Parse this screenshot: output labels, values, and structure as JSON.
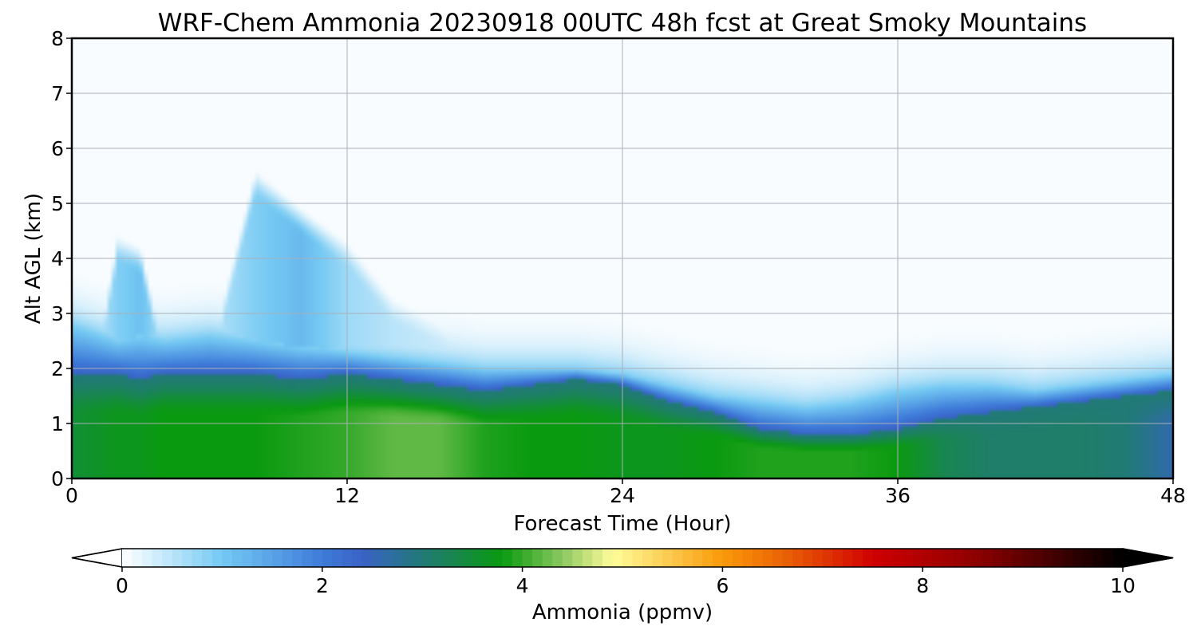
{
  "chart_data": {
    "type": "heatmap",
    "title": "WRF-Chem Ammonia  20230918 00UTC 48h fcst at Great Smoky Mountains",
    "xlabel": "Forecast Time (Hour)",
    "ylabel": "Alt AGL (km)",
    "xlim": [
      0,
      48
    ],
    "ylim": [
      0,
      8
    ],
    "x_ticks": [
      "0",
      "12",
      "24",
      "36",
      "48"
    ],
    "y_ticks": [
      "0",
      "1",
      "2",
      "3",
      "4",
      "5",
      "6",
      "7",
      "8"
    ],
    "grid": true,
    "colorbar": {
      "label": "Ammonia  (ppmv)",
      "range": [
        0,
        10
      ],
      "ticks": [
        "0",
        "2",
        "4",
        "6",
        "8",
        "10"
      ],
      "extend": "both",
      "stops": [
        {
          "v": 0.0,
          "c": "#ffffff"
        },
        {
          "v": 1.0,
          "c": "#74c9f3"
        },
        {
          "v": 2.0,
          "c": "#3e7bd9"
        },
        {
          "v": 2.4,
          "c": "#3a62c7"
        },
        {
          "v": 3.0,
          "c": "#217a76"
        },
        {
          "v": 3.8,
          "c": "#0a9a10"
        },
        {
          "v": 4.4,
          "c": "#8cc860"
        },
        {
          "v": 4.9,
          "c": "#fffc9a"
        },
        {
          "v": 6.0,
          "c": "#fa9a08"
        },
        {
          "v": 6.7,
          "c": "#e85a05"
        },
        {
          "v": 7.5,
          "c": "#d00000"
        },
        {
          "v": 8.5,
          "c": "#900000"
        },
        {
          "v": 10.0,
          "c": "#000000"
        }
      ]
    },
    "profiles": [
      {
        "hour": 0,
        "surface": 3.5,
        "h1": 1.9,
        "h2": 2.8,
        "plume_h": 0.0,
        "plume_v": 0.0
      },
      {
        "hour": 2,
        "surface": 3.7,
        "h1": 1.9,
        "h2": 2.5,
        "plume_h": 4.5,
        "plume_v": 0.9
      },
      {
        "hour": 3,
        "surface": 3.7,
        "h1": 1.8,
        "h2": 2.6,
        "plume_h": 4.3,
        "plume_v": 1.1
      },
      {
        "hour": 4,
        "surface": 3.8,
        "h1": 1.9,
        "h2": 2.5,
        "plume_h": 2.5,
        "plume_v": 0.6
      },
      {
        "hour": 6,
        "surface": 3.8,
        "h1": 1.9,
        "h2": 2.6,
        "plume_h": 2.4,
        "plume_v": 0.5
      },
      {
        "hour": 8,
        "surface": 3.8,
        "h1": 1.9,
        "h2": 2.5,
        "plume_h": 5.7,
        "plume_v": 0.9
      },
      {
        "hour": 10,
        "surface": 3.9,
        "h1": 1.8,
        "h2": 2.4,
        "plume_h": 5.0,
        "plume_v": 1.2
      },
      {
        "hour": 12,
        "surface": 4.0,
        "h1": 1.9,
        "h2": 2.3,
        "plume_h": 4.4,
        "plume_v": 0.7
      },
      {
        "hour": 14,
        "surface": 4.2,
        "h1": 1.8,
        "h2": 2.2,
        "plume_h": 3.4,
        "plume_v": 0.5
      },
      {
        "hour": 16,
        "surface": 4.2,
        "h1": 1.7,
        "h2": 2.1,
        "plume_h": 3.0,
        "plume_v": 0.4
      },
      {
        "hour": 18,
        "surface": 3.9,
        "h1": 1.6,
        "h2": 2.0,
        "plume_h": 2.6,
        "plume_v": 0.3
      },
      {
        "hour": 20,
        "surface": 3.8,
        "h1": 1.7,
        "h2": 2.0,
        "plume_h": 2.3,
        "plume_v": 0.2
      },
      {
        "hour": 22,
        "surface": 3.8,
        "h1": 1.8,
        "h2": 2.0,
        "plume_h": 2.1,
        "plume_v": 0.2
      },
      {
        "hour": 24,
        "surface": 3.7,
        "h1": 1.7,
        "h2": 1.9,
        "plume_h": 0.0,
        "plume_v": 0.0
      },
      {
        "hour": 26,
        "surface": 3.7,
        "h1": 1.4,
        "h2": 1.7,
        "plume_h": 0.0,
        "plume_v": 0.0
      },
      {
        "hour": 28,
        "surface": 3.8,
        "h1": 1.2,
        "h2": 1.5,
        "plume_h": 0.0,
        "plume_v": 0.0
      },
      {
        "hour": 30,
        "surface": 3.9,
        "h1": 0.9,
        "h2": 1.4,
        "plume_h": 0.0,
        "plume_v": 0.0
      },
      {
        "hour": 32,
        "surface": 3.9,
        "h1": 0.8,
        "h2": 1.3,
        "plume_h": 0.0,
        "plume_v": 0.0
      },
      {
        "hour": 34,
        "surface": 3.9,
        "h1": 0.8,
        "h2": 1.4,
        "plume_h": 0.0,
        "plume_v": 0.0
      },
      {
        "hour": 36,
        "surface": 3.8,
        "h1": 0.9,
        "h2": 1.6,
        "plume_h": 0.0,
        "plume_v": 0.0
      },
      {
        "hour": 38,
        "surface": 3.3,
        "h1": 1.1,
        "h2": 1.7,
        "plume_h": 0.0,
        "plume_v": 0.0
      },
      {
        "hour": 40,
        "surface": 3.1,
        "h1": 1.2,
        "h2": 1.7,
        "plume_h": 0.0,
        "plume_v": 0.0
      },
      {
        "hour": 42,
        "surface": 3.1,
        "h1": 1.3,
        "h2": 1.6,
        "plume_h": 0.0,
        "plume_v": 0.0
      },
      {
        "hour": 44,
        "surface": 3.1,
        "h1": 1.4,
        "h2": 1.7,
        "plume_h": 0.0,
        "plume_v": 0.0
      },
      {
        "hour": 46,
        "surface": 3.0,
        "h1": 1.5,
        "h2": 1.8,
        "plume_h": 0.0,
        "plume_v": 0.0
      },
      {
        "hour": 48,
        "surface": 2.6,
        "h1": 1.6,
        "h2": 1.9,
        "plume_h": 0.0,
        "plume_v": 0.0
      }
    ]
  }
}
